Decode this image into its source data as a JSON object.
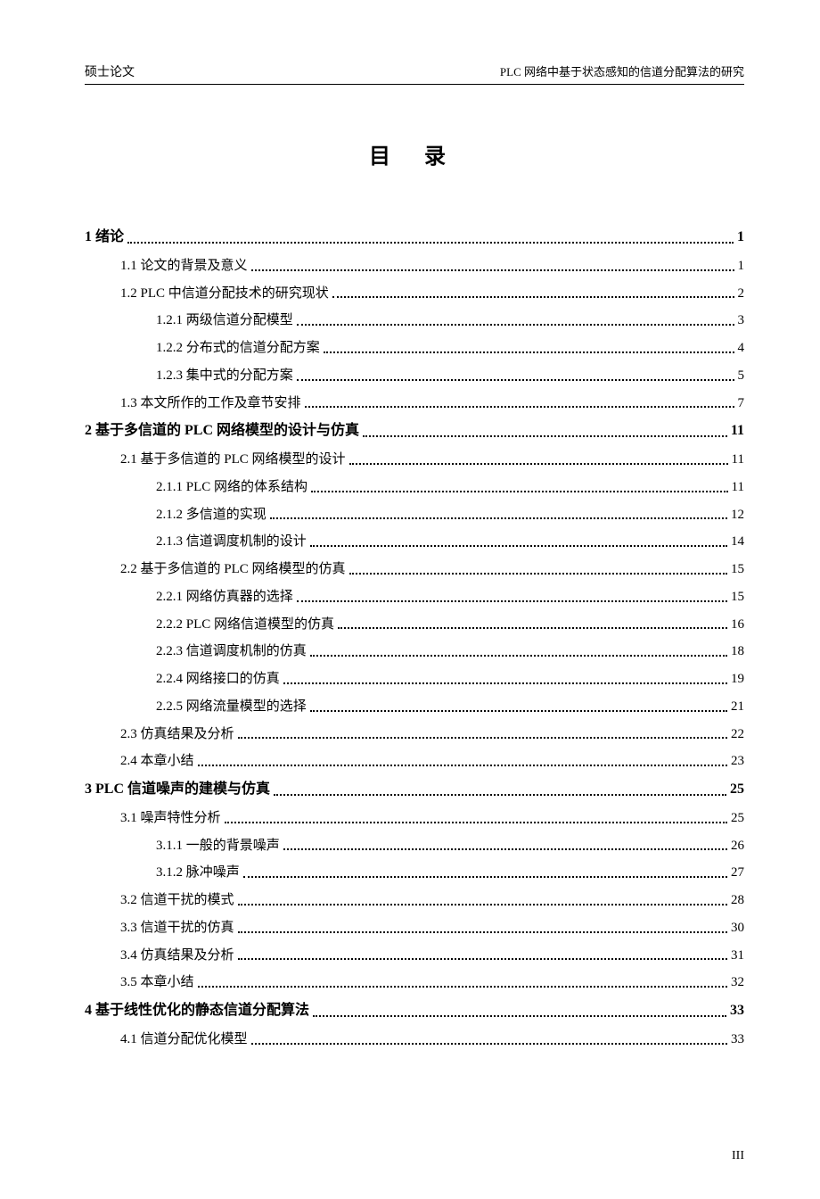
{
  "header": {
    "left": "硕士论文",
    "right": "PLC 网络中基于状态感知的信道分配算法的研究"
  },
  "title": "目 录",
  "page_number": "III",
  "styling": {
    "body_fontsize": 15,
    "title_fontsize": 24,
    "chapter_fontsize": 16,
    "header_fontsize": 14,
    "line_height": 2.05,
    "text_color": "#000000",
    "background_color": "#ffffff",
    "indent_level1": 40,
    "indent_level2": 80,
    "dot_style": "dotted"
  },
  "toc": [
    {
      "level": 0,
      "label": "1  绪论",
      "page": "1"
    },
    {
      "level": 1,
      "label": "1.1  论文的背景及意义",
      "page": "1"
    },
    {
      "level": 1,
      "label": "1.2 PLC 中信道分配技术的研究现状",
      "page": "2"
    },
    {
      "level": 2,
      "label": "1.2.1  两级信道分配模型",
      "page": "3"
    },
    {
      "level": 2,
      "label": "1.2.2  分布式的信道分配方案",
      "page": "4"
    },
    {
      "level": 2,
      "label": "1.2.3  集中式的分配方案",
      "page": "5"
    },
    {
      "level": 1,
      "label": "1.3  本文所作的工作及章节安排",
      "page": "7"
    },
    {
      "level": 0,
      "label": "2  基于多信道的 PLC 网络模型的设计与仿真",
      "page": "11"
    },
    {
      "level": 1,
      "label": "2.1  基于多信道的 PLC 网络模型的设计",
      "page": "11"
    },
    {
      "level": 2,
      "label": "2.1.1 PLC 网络的体系结构",
      "page": "11"
    },
    {
      "level": 2,
      "label": "2.1.2  多信道的实现",
      "page": "12"
    },
    {
      "level": 2,
      "label": "2.1.3  信道调度机制的设计",
      "page": "14"
    },
    {
      "level": 1,
      "label": "2.2  基于多信道的 PLC 网络模型的仿真",
      "page": "15"
    },
    {
      "level": 2,
      "label": "2.2.1  网络仿真器的选择",
      "page": "15"
    },
    {
      "level": 2,
      "label": "2.2.2 PLC 网络信道模型的仿真",
      "page": "16"
    },
    {
      "level": 2,
      "label": "2.2.3  信道调度机制的仿真",
      "page": "18"
    },
    {
      "level": 2,
      "label": "2.2.4  网络接口的仿真",
      "page": "19"
    },
    {
      "level": 2,
      "label": "2.2.5  网络流量模型的选择",
      "page": "21"
    },
    {
      "level": 1,
      "label": "2.3  仿真结果及分析",
      "page": "22"
    },
    {
      "level": 1,
      "label": "2.4  本章小结",
      "page": "23"
    },
    {
      "level": 0,
      "label": "3 PLC 信道噪声的建模与仿真",
      "page": "25"
    },
    {
      "level": 1,
      "label": "3.1  噪声特性分析",
      "page": "25"
    },
    {
      "level": 2,
      "label": "3.1.1  一般的背景噪声",
      "page": "26"
    },
    {
      "level": 2,
      "label": "3.1.2  脉冲噪声",
      "page": "27"
    },
    {
      "level": 1,
      "label": "3.2  信道干扰的模式",
      "page": "28"
    },
    {
      "level": 1,
      "label": "3.3  信道干扰的仿真",
      "page": "30"
    },
    {
      "level": 1,
      "label": "3.4  仿真结果及分析",
      "page": "31"
    },
    {
      "level": 1,
      "label": "3.5  本章小结",
      "page": "32"
    },
    {
      "level": 0,
      "label": "4  基于线性优化的静态信道分配算法",
      "page": "33"
    },
    {
      "level": 1,
      "label": "4.1  信道分配优化模型",
      "page": "33"
    }
  ]
}
